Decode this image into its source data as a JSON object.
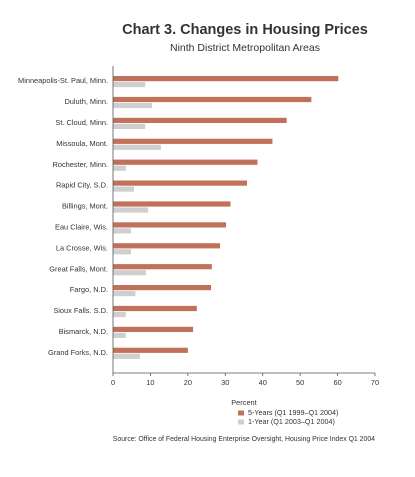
{
  "chart_data": {
    "type": "bar",
    "orientation": "horizontal",
    "title": "Chart 3. Changes in Housing Prices",
    "subtitle": "Ninth District Metropolitan Areas",
    "xlabel": "Percent",
    "ylabel": "",
    "xlim": [
      0,
      70
    ],
    "xticks": [
      0,
      10,
      20,
      30,
      40,
      50,
      60,
      70
    ],
    "grid": false,
    "legend_position": "bottom-right",
    "categories": [
      "Minneapolis-St. Paul, Minn.",
      "Duluth, Minn.",
      "St. Cloud, Minn.",
      "Missoula, Mont.",
      "Rochester, Minn.",
      "Rapid City, S.D.",
      "Billings, Mont.",
      "Eau Claire, Wis.",
      "La Crosse, Wis.",
      "Great Falls, Mont.",
      "Fargo, N.D.",
      "Sioux Falls. S.D.",
      "Bismarck, N.D.",
      "Grand Forks, N.D."
    ],
    "series": [
      {
        "name": "5-Years (Q1 1999–Q1 2004)",
        "color": "#c0715a",
        "values": [
          60.2,
          53.0,
          46.4,
          42.6,
          38.6,
          35.8,
          31.4,
          30.2,
          28.6,
          26.4,
          26.2,
          22.4,
          21.4,
          20.0
        ]
      },
      {
        "name": "1-Year (Q1 2003–Q1 2004)",
        "color": "#cfcfcf",
        "values": [
          8.6,
          10.4,
          8.6,
          12.8,
          3.4,
          5.6,
          9.4,
          4.8,
          4.8,
          8.8,
          6.0,
          3.4,
          3.4,
          7.2
        ]
      }
    ],
    "source": "Source: Office of Federal Housing Enterprise Oversight, Housing Price Index Q1 2004"
  }
}
